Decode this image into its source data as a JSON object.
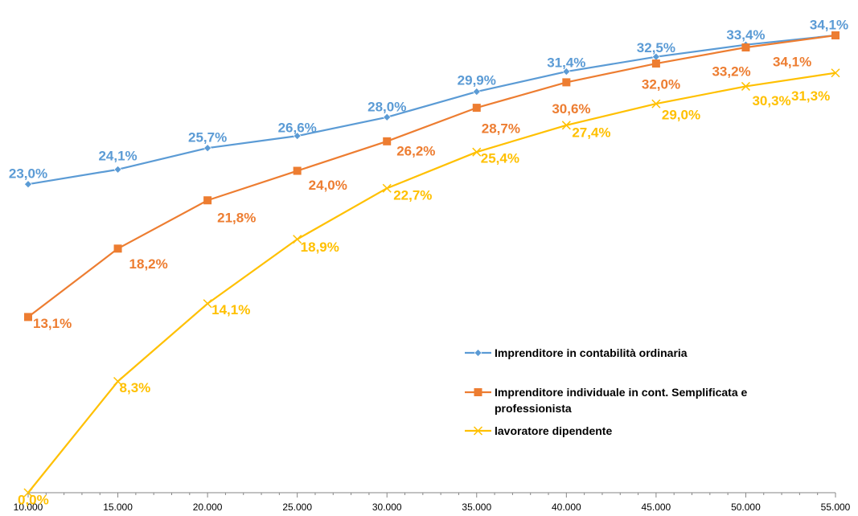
{
  "chart_data": {
    "type": "line",
    "title": "",
    "xlabel": "",
    "ylabel": "",
    "x": [
      "10.000",
      "15.000",
      "20.000",
      "25.000",
      "30.000",
      "35.000",
      "40.000",
      "45.000",
      "50.000",
      "55.000"
    ],
    "ylim": [
      0,
      34.1
    ],
    "grid": false,
    "legend_position": "lower-right",
    "series": [
      {
        "name": "Imprenditore in contabilità  ordinaria",
        "color": "#5b9bd5",
        "marker": "diamond",
        "values": [
          23.0,
          24.1,
          25.7,
          26.6,
          28.0,
          29.9,
          31.4,
          32.5,
          33.4,
          34.1
        ],
        "labels": [
          "23,0%",
          "24,1%",
          "25,7%",
          "26,6%",
          "28,0%",
          "29,9%",
          "31,4%",
          "32,5%",
          "33,4%",
          "34,1%"
        ]
      },
      {
        "name": "Imprenditore individuale in cont. Semplificata e professionista",
        "legend_lines": [
          "Imprenditore  individuale  in  cont.  Semplificata e",
          "professionista"
        ],
        "color": "#ed7d31",
        "marker": "square",
        "values": [
          13.1,
          18.2,
          21.8,
          24.0,
          26.2,
          28.7,
          30.6,
          32.0,
          33.2,
          34.1
        ],
        "labels": [
          "13,1%",
          "18,2%",
          "21,8%",
          "24,0%",
          "26,2%",
          "28,7%",
          "30,6%",
          "32,0%",
          "33,2%",
          "34,1%"
        ]
      },
      {
        "name": "lavoratore dipendente",
        "color": "#ffc000",
        "marker": "x",
        "values": [
          0.0,
          8.3,
          14.1,
          18.9,
          22.7,
          25.4,
          27.4,
          29.0,
          30.3,
          31.3
        ],
        "labels": [
          "0,0%",
          "8,3%",
          "14,1%",
          "18,9%",
          "22,7%",
          "25,4%",
          "27,4%",
          "29,0%",
          "30,3%",
          "31,3%"
        ]
      }
    ]
  }
}
